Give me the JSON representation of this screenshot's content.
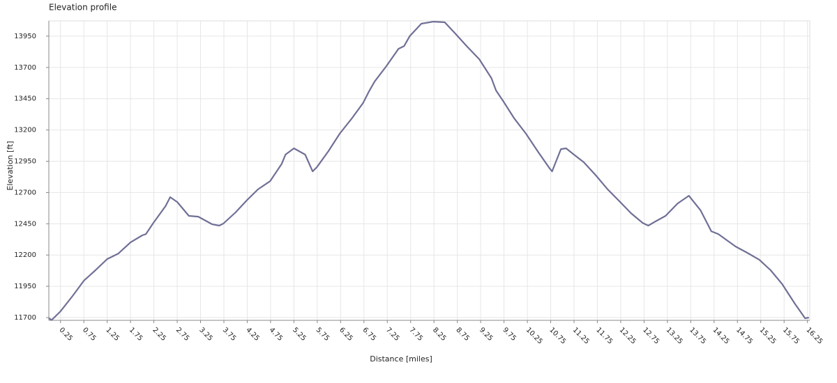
{
  "chart_data": {
    "type": "line",
    "title": "Elevation profile",
    "x_label": "Distance [miles]",
    "y_label": "Elevation [ft]",
    "series": [
      {
        "name": "Elevation",
        "color": "#6f6f96",
        "x": [
          0,
          0.06,
          0.25,
          0.51,
          0.75,
          1.0,
          1.25,
          1.49,
          1.75,
          2.0,
          2.08,
          2.24,
          2.5,
          2.6,
          2.75,
          3.0,
          3.2,
          3.5,
          3.65,
          3.74,
          4.0,
          4.25,
          4.48,
          4.74,
          4.99,
          5.07,
          5.25,
          5.49,
          5.65,
          5.74,
          5.99,
          6.23,
          6.49,
          6.73,
          6.86,
          6.98,
          7.23,
          7.49,
          7.61,
          7.73,
          7.98,
          8.24,
          8.48,
          8.73,
          8.95,
          9.22,
          9.48,
          9.58,
          9.73,
          9.97,
          10.22,
          10.48,
          10.73,
          10.78,
          10.97,
          11.08,
          11.23,
          11.46,
          11.72,
          11.97,
          12.21,
          12.47,
          12.72,
          12.84,
          12.99,
          13.21,
          13.47,
          13.71,
          13.96,
          14.19,
          14.34,
          14.71,
          14.96,
          15.22,
          15.46,
          15.71,
          15.98,
          16.2,
          16.28
        ],
        "values": [
          11695,
          11680,
          11750,
          11873,
          11995,
          12079,
          12168,
          12212,
          12301,
          12357,
          12368,
          12457,
          12591,
          12663,
          12624,
          12513,
          12507,
          12446,
          12435,
          12452,
          12541,
          12641,
          12725,
          12791,
          12930,
          13003,
          13053,
          13003,
          12869,
          12902,
          13031,
          13170,
          13292,
          13415,
          13510,
          13588,
          13710,
          13849,
          13871,
          13950,
          14050,
          14066,
          14061,
          13961,
          13871,
          13766,
          13615,
          13515,
          13432,
          13292,
          13170,
          13025,
          12891,
          12869,
          13047,
          13053,
          13008,
          12942,
          12836,
          12725,
          12635,
          12535,
          12457,
          12435,
          12468,
          12513,
          12613,
          12674,
          12557,
          12390,
          12368,
          12268,
          12218,
          12162,
          12079,
          11967,
          11811,
          11694,
          11700
        ]
      }
    ],
    "xlim": [
      0,
      16.3
    ],
    "ylim": [
      11678,
      14072
    ],
    "xticks": [
      0.25,
      0.75,
      1.25,
      1.75,
      2.25,
      2.75,
      3.25,
      3.75,
      4.25,
      4.75,
      5.25,
      5.75,
      6.25,
      6.75,
      7.25,
      7.75,
      8.25,
      8.75,
      9.25,
      9.75,
      10.25,
      10.75,
      11.25,
      11.75,
      12.25,
      12.75,
      13.25,
      13.75,
      14.25,
      14.75,
      15.25,
      15.75,
      16.25
    ],
    "yticks": [
      11700,
      11950,
      12200,
      12450,
      12700,
      12950,
      13200,
      13450,
      13700,
      13950
    ],
    "grid": true
  }
}
